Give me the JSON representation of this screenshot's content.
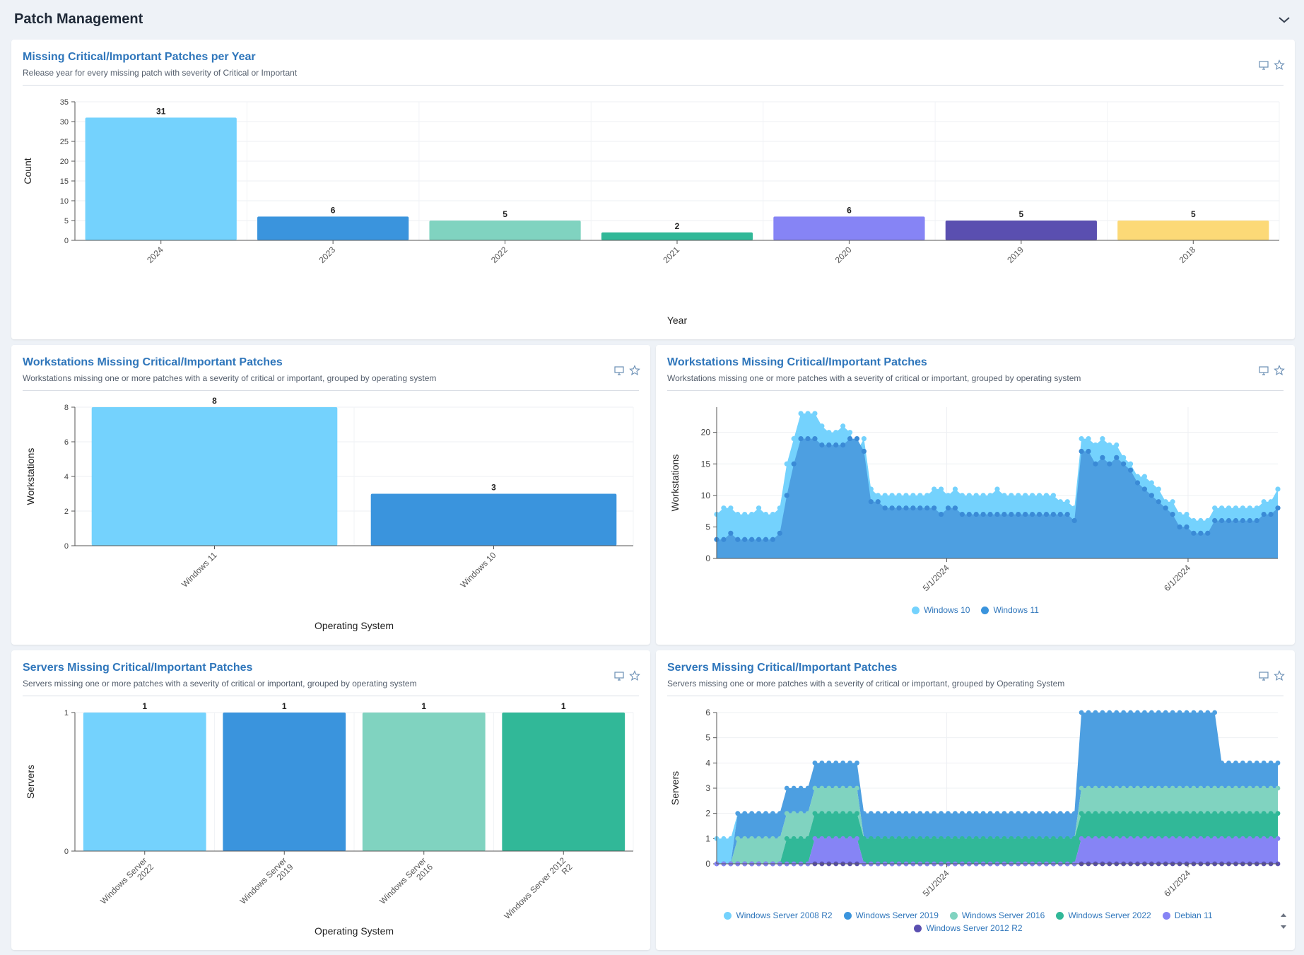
{
  "page": {
    "title": "Patch Management"
  },
  "cards": {
    "per_year": {
      "title": "Missing Critical/Important Patches per Year",
      "subtitle": "Release year for every missing patch with severity of Critical or Important"
    },
    "ws_bar": {
      "title": "Workstations Missing Critical/Important Patches",
      "subtitle": "Workstations missing one or more patches with a severity of critical or important, grouped by operating system"
    },
    "ws_area": {
      "title": "Workstations Missing Critical/Important Patches",
      "subtitle": "Workstations missing one or more patches with a severity of critical or important, grouped by operating system"
    },
    "srv_bar": {
      "title": "Servers Missing Critical/Important Patches",
      "subtitle": "Servers missing one or more patches with a severity of critical or important, grouped by operating system"
    },
    "srv_area": {
      "title": "Servers Missing Critical/Important Patches",
      "subtitle": "Servers missing one or more patches with a severity of critical or important, grouped by Operating System"
    }
  },
  "icons": {
    "monitor": "monitor-icon",
    "star": "star-icon",
    "collapse": "chevron-down-icon"
  },
  "colors": {
    "lightblue": "#74d2fd",
    "blue": "#3a94dd",
    "blue_area": "#4d9fe1",
    "mint": "#80d3c0",
    "teal": "#31b898",
    "violet": "#8684f5",
    "indigo": "#5a4fb0",
    "yellow": "#fcd977"
  },
  "chart_data": [
    {
      "type": "bar",
      "categories": [
        "2024",
        "2023",
        "2022",
        "2021",
        "2020",
        "2019",
        "2018"
      ],
      "values": [
        31,
        6,
        5,
        2,
        6,
        5,
        5
      ],
      "colors": [
        "#74d2fd",
        "#3a94dd",
        "#80d3c0",
        "#31b898",
        "#8684f5",
        "#5a4fb0",
        "#fcd977"
      ],
      "xlabel": "Year",
      "ylabel": "Count",
      "ylim": [
        0,
        35
      ],
      "yticks": [
        0,
        5,
        10,
        15,
        20,
        25,
        30,
        35
      ],
      "grid": true
    },
    {
      "type": "bar",
      "categories": [
        "Windows 11",
        "Windows 10"
      ],
      "values": [
        8,
        3
      ],
      "colors": [
        "#74d2fd",
        "#3a94dd"
      ],
      "xlabel": "Operating System",
      "ylabel": "Workstations",
      "ylim": [
        0,
        8
      ],
      "yticks": [
        0,
        2,
        4,
        6,
        8
      ],
      "grid": true
    },
    {
      "type": "area",
      "ylabel": "Workstations",
      "ylim": [
        0,
        24
      ],
      "yticks": [
        0,
        5,
        10,
        15,
        20
      ],
      "xticks": [
        "5/1/2024",
        "6/1/2024"
      ],
      "legend_position": "bottom",
      "series": [
        {
          "name": "Windows 10",
          "color": "#74d2fd",
          "values": [
            7,
            8,
            8,
            7,
            7,
            7,
            8,
            7,
            7,
            8,
            15,
            19,
            23,
            23,
            23,
            21,
            20,
            20,
            21,
            20,
            17,
            19,
            11,
            10,
            10,
            10,
            10,
            10,
            10,
            10,
            10,
            11,
            11,
            10,
            11,
            10,
            10,
            10,
            10,
            10,
            11,
            10,
            10,
            10,
            10,
            10,
            10,
            10,
            10,
            9,
            9,
            8,
            19,
            19,
            18,
            19,
            18,
            18,
            16,
            15,
            13,
            13,
            12,
            11,
            9,
            9,
            7,
            7,
            6,
            6,
            6,
            8,
            8,
            8,
            8,
            8,
            8,
            8,
            9,
            9,
            11
          ]
        },
        {
          "name": "Windows 11",
          "color": "#4d9fe1",
          "values": [
            3,
            3,
            4,
            3,
            3,
            3,
            3,
            3,
            3,
            4,
            10,
            15,
            19,
            19,
            19,
            18,
            18,
            18,
            18,
            19,
            19,
            17,
            9,
            9,
            8,
            8,
            8,
            8,
            8,
            8,
            8,
            8,
            7,
            8,
            8,
            7,
            7,
            7,
            7,
            7,
            7,
            7,
            7,
            7,
            7,
            7,
            7,
            7,
            7,
            7,
            7,
            6,
            17,
            17,
            15,
            16,
            15,
            16,
            15,
            14,
            12,
            11,
            10,
            9,
            8,
            7,
            5,
            5,
            4,
            4,
            4,
            6,
            6,
            6,
            6,
            6,
            6,
            6,
            7,
            7,
            8
          ]
        }
      ]
    },
    {
      "type": "bar",
      "categories": [
        "Windows Server 2022",
        "Windows Server 2019",
        "Windows Server 2016",
        "Windows Server 2012 R2"
      ],
      "values": [
        1,
        1,
        1,
        1
      ],
      "colors": [
        "#74d2fd",
        "#3a94dd",
        "#80d3c0",
        "#31b898"
      ],
      "xlabel": "Operating System",
      "ylabel": "Servers",
      "ylim": [
        0,
        1
      ],
      "yticks": [
        0,
        1
      ],
      "grid": true
    },
    {
      "type": "area",
      "ylabel": "Servers",
      "ylim": [
        0,
        6
      ],
      "yticks": [
        0,
        1,
        2,
        3,
        4,
        5,
        6
      ],
      "xticks": [
        "5/1/2024",
        "6/1/2024"
      ],
      "legend_position": "bottom",
      "series": [
        {
          "name": "Windows Server 2012 R2",
          "color": "#5a4fb0",
          "values": [
            0,
            0,
            0,
            0,
            0,
            0,
            0,
            0,
            0,
            0,
            0,
            0,
            0,
            0,
            0,
            0,
            0,
            0,
            0,
            0,
            0,
            0,
            0,
            0,
            0,
            0,
            0,
            0,
            0,
            0,
            0,
            0,
            0,
            0,
            0,
            0,
            0,
            0,
            0,
            0,
            0,
            0,
            0,
            0,
            0,
            0,
            0,
            0,
            0,
            0,
            0,
            0,
            0,
            0,
            0,
            0,
            0,
            0,
            0,
            0,
            0,
            0,
            0,
            0,
            0,
            0,
            0,
            0,
            0,
            0,
            0,
            0,
            0,
            0,
            0,
            0,
            0,
            0,
            0,
            0,
            0
          ]
        },
        {
          "name": "Debian 11",
          "color": "#8684f5",
          "values": [
            0,
            0,
            0,
            0,
            0,
            0,
            0,
            0,
            0,
            0,
            0,
            0,
            0,
            0,
            1,
            1,
            1,
            1,
            1,
            1,
            1,
            0,
            0,
            0,
            0,
            0,
            0,
            0,
            0,
            0,
            0,
            0,
            0,
            0,
            0,
            0,
            0,
            0,
            0,
            0,
            0,
            0,
            0,
            0,
            0,
            0,
            0,
            0,
            0,
            0,
            0,
            0,
            1,
            1,
            1,
            1,
            1,
            1,
            1,
            1,
            1,
            1,
            1,
            1,
            1,
            1,
            1,
            1,
            1,
            1,
            1,
            1,
            1,
            1,
            1,
            1,
            1,
            1,
            1,
            1,
            1
          ]
        },
        {
          "name": "Windows Server 2022",
          "color": "#31b898",
          "values": [
            0,
            0,
            0,
            0,
            0,
            0,
            0,
            0,
            0,
            0,
            1,
            1,
            1,
            1,
            1,
            1,
            1,
            1,
            1,
            1,
            1,
            1,
            1,
            1,
            1,
            1,
            1,
            1,
            1,
            1,
            1,
            1,
            1,
            1,
            1,
            1,
            1,
            1,
            1,
            1,
            1,
            1,
            1,
            1,
            1,
            1,
            1,
            1,
            1,
            1,
            1,
            1,
            1,
            1,
            1,
            1,
            1,
            1,
            1,
            1,
            1,
            1,
            1,
            1,
            1,
            1,
            1,
            1,
            1,
            1,
            1,
            1,
            1,
            1,
            1,
            1,
            1,
            1,
            1,
            1,
            1
          ]
        },
        {
          "name": "Windows Server 2016",
          "color": "#80d3c0",
          "values": [
            0,
            0,
            0,
            1,
            1,
            1,
            1,
            1,
            1,
            1,
            1,
            1,
            1,
            1,
            1,
            1,
            1,
            1,
            1,
            1,
            1,
            0,
            0,
            0,
            0,
            0,
            0,
            0,
            0,
            0,
            0,
            0,
            0,
            0,
            0,
            0,
            0,
            0,
            0,
            0,
            0,
            0,
            0,
            0,
            0,
            0,
            0,
            0,
            0,
            0,
            0,
            0,
            1,
            1,
            1,
            1,
            1,
            1,
            1,
            1,
            1,
            1,
            1,
            1,
            1,
            1,
            1,
            1,
            1,
            1,
            1,
            1,
            1,
            1,
            1,
            1,
            1,
            1,
            1,
            1,
            1
          ]
        },
        {
          "name": "Windows Server 2019",
          "color": "#4d9fe1",
          "values": [
            0,
            0,
            0,
            1,
            1,
            1,
            1,
            1,
            1,
            1,
            1,
            1,
            1,
            1,
            1,
            1,
            1,
            1,
            1,
            1,
            1,
            1,
            1,
            1,
            1,
            1,
            1,
            1,
            1,
            1,
            1,
            1,
            1,
            1,
            1,
            1,
            1,
            1,
            1,
            1,
            1,
            1,
            1,
            1,
            1,
            1,
            1,
            1,
            1,
            1,
            1,
            1,
            3,
            3,
            3,
            3,
            3,
            3,
            3,
            3,
            3,
            3,
            3,
            3,
            3,
            3,
            3,
            3,
            3,
            3,
            3,
            3,
            1,
            1,
            1,
            1,
            1,
            1,
            1,
            1,
            1
          ]
        },
        {
          "name": "Windows Server 2008 R2",
          "color": "#74d2fd",
          "values": [
            1,
            1,
            1,
            0,
            0,
            0,
            0,
            0,
            0,
            0,
            0,
            0,
            0,
            0,
            0,
            0,
            0,
            0,
            0,
            0,
            0,
            0,
            0,
            0,
            0,
            0,
            0,
            0,
            0,
            0,
            0,
            0,
            0,
            0,
            0,
            0,
            0,
            0,
            0,
            0,
            0,
            0,
            0,
            0,
            0,
            0,
            0,
            0,
            0,
            0,
            0,
            0,
            0,
            0,
            0,
            0,
            0,
            0,
            0,
            0,
            0,
            0,
            0,
            0,
            0,
            0,
            0,
            0,
            0,
            0,
            0,
            0,
            0,
            0,
            0,
            0,
            0,
            0,
            0,
            0,
            0
          ]
        }
      ]
    }
  ],
  "legends": {
    "ws_area": [
      {
        "label": "Windows 10",
        "color": "#74d2fd"
      },
      {
        "label": "Windows 11",
        "color": "#3a94dd"
      }
    ],
    "srv_area": [
      {
        "label": "Windows Server 2008 R2",
        "color": "#74d2fd"
      },
      {
        "label": "Windows Server 2019",
        "color": "#3a94dd"
      },
      {
        "label": "Windows Server 2016",
        "color": "#80d3c0"
      },
      {
        "label": "Windows Server 2022",
        "color": "#31b898"
      },
      {
        "label": "Debian 11",
        "color": "#8684f5"
      },
      {
        "label": "Windows Server 2012 R2",
        "color": "#5a4fb0"
      }
    ]
  }
}
